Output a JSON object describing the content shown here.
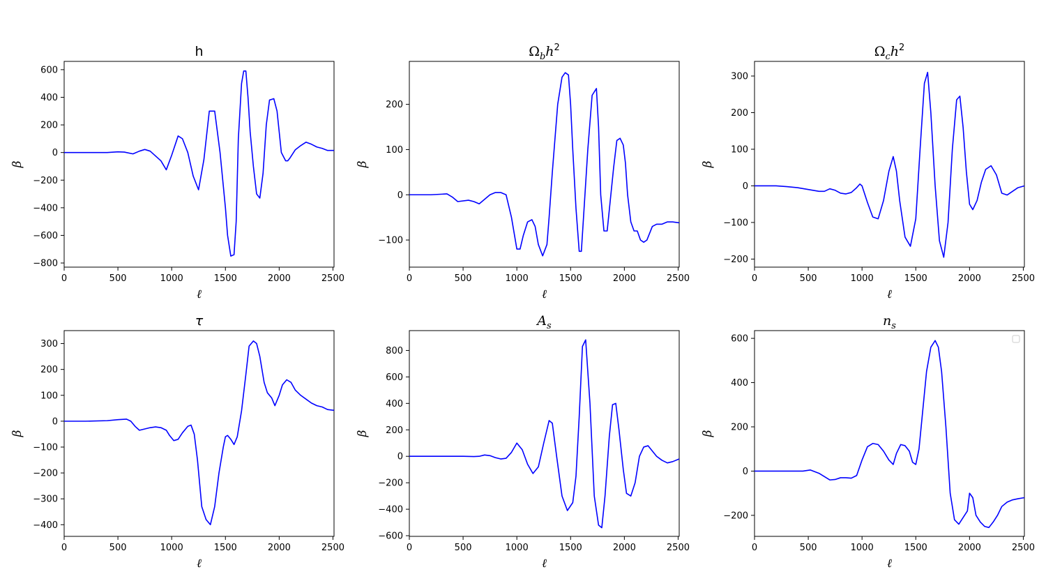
{
  "figure": {
    "colors": {
      "line": "#0000ff",
      "frame": "#000000",
      "background": "#ffffff"
    }
  },
  "chart_data": [
    {
      "type": "line",
      "title": "h",
      "xlabel": "ℓ",
      "ylabel": "β",
      "xlim": [
        0,
        2510
      ],
      "ylim": [
        -830,
        660
      ],
      "xticks": [
        0,
        500,
        1000,
        1500,
        2000,
        2500
      ],
      "yticks": [
        -800,
        -600,
        -400,
        -200,
        0,
        200,
        400,
        600
      ],
      "grid": false,
      "legend": false,
      "series": [
        {
          "color": "#0000ff",
          "x": [
            0,
            200,
            400,
            500,
            560,
            640,
            700,
            750,
            800,
            900,
            950,
            1000,
            1060,
            1100,
            1150,
            1200,
            1250,
            1300,
            1350,
            1400,
            1450,
            1500,
            1520,
            1550,
            1580,
            1600,
            1620,
            1650,
            1670,
            1690,
            1710,
            1730,
            1760,
            1790,
            1820,
            1850,
            1880,
            1910,
            1950,
            1980,
            2000,
            2020,
            2040,
            2060,
            2080,
            2100,
            2150,
            2200,
            2250,
            2300,
            2350,
            2400,
            2450,
            2510
          ],
          "y": [
            0,
            0,
            0,
            5,
            3,
            -10,
            10,
            22,
            10,
            -60,
            -125,
            -20,
            120,
            100,
            0,
            -170,
            -270,
            -50,
            300,
            300,
            0,
            -400,
            -600,
            -750,
            -740,
            -500,
            100,
            500,
            590,
            590,
            400,
            150,
            -100,
            -300,
            -330,
            -150,
            200,
            380,
            390,
            300,
            150,
            0,
            -30,
            -60,
            -60,
            -40,
            20,
            50,
            75,
            60,
            40,
            30,
            15,
            15
          ]
        }
      ]
    },
    {
      "type": "line",
      "title": "Ω_b h²",
      "title_parts": {
        "main": "Ω",
        "sub": "b",
        "mid": "h",
        "sup": "2"
      },
      "xlabel": "ℓ",
      "ylabel": "β",
      "xlim": [
        0,
        2510
      ],
      "ylim": [
        -160,
        295
      ],
      "xticks": [
        0,
        500,
        1000,
        1500,
        2000,
        2500
      ],
      "yticks": [
        -100,
        0,
        100,
        200
      ],
      "grid": false,
      "legend": false,
      "series": [
        {
          "color": "#0000ff",
          "x": [
            0,
            200,
            350,
            400,
            450,
            550,
            600,
            650,
            700,
            750,
            800,
            850,
            900,
            950,
            1000,
            1030,
            1060,
            1100,
            1140,
            1170,
            1200,
            1240,
            1280,
            1300,
            1330,
            1380,
            1420,
            1450,
            1480,
            1500,
            1520,
            1550,
            1580,
            1600,
            1620,
            1660,
            1700,
            1740,
            1760,
            1780,
            1810,
            1840,
            1870,
            1900,
            1930,
            1960,
            1990,
            2010,
            2030,
            2060,
            2090,
            2120,
            2150,
            2180,
            2210,
            2260,
            2300,
            2350,
            2400,
            2450,
            2510
          ],
          "y": [
            0,
            0,
            2,
            -5,
            -15,
            -12,
            -15,
            -20,
            -10,
            0,
            5,
            5,
            0,
            -50,
            -120,
            -120,
            -90,
            -60,
            -55,
            -70,
            -110,
            -135,
            -110,
            -50,
            50,
            200,
            260,
            270,
            265,
            200,
            100,
            -30,
            -125,
            -125,
            -50,
            100,
            220,
            235,
            150,
            0,
            -80,
            -80,
            -10,
            60,
            120,
            125,
            110,
            70,
            0,
            -60,
            -80,
            -80,
            -100,
            -105,
            -100,
            -70,
            -65,
            -65,
            -60,
            -60,
            -62
          ]
        }
      ]
    },
    {
      "type": "line",
      "title": "Ω_c h²",
      "title_parts": {
        "main": "Ω",
        "sub": "c",
        "mid": "h",
        "sup": "2"
      },
      "xlabel": "ℓ",
      "ylabel": "β",
      "xlim": [
        0,
        2510
      ],
      "ylim": [
        -222,
        340
      ],
      "xticks": [
        0,
        500,
        1000,
        1500,
        2000,
        2500
      ],
      "yticks": [
        -200,
        -100,
        0,
        100,
        200,
        300
      ],
      "grid": false,
      "legend": false,
      "series": [
        {
          "color": "#0000ff",
          "x": [
            0,
            200,
            300,
            400,
            500,
            600,
            650,
            700,
            750,
            800,
            850,
            900,
            950,
            980,
            1000,
            1050,
            1100,
            1150,
            1200,
            1250,
            1290,
            1320,
            1350,
            1400,
            1450,
            1500,
            1540,
            1580,
            1610,
            1640,
            1680,
            1720,
            1760,
            1800,
            1840,
            1880,
            1910,
            1940,
            1970,
            2000,
            2030,
            2070,
            2110,
            2150,
            2200,
            2250,
            2300,
            2350,
            2400,
            2450,
            2510
          ],
          "y": [
            0,
            0,
            -2,
            -5,
            -10,
            -15,
            -15,
            -8,
            -12,
            -20,
            -22,
            -18,
            -5,
            5,
            0,
            -45,
            -85,
            -90,
            -40,
            40,
            80,
            40,
            -40,
            -140,
            -165,
            -90,
            100,
            280,
            310,
            200,
            0,
            -150,
            -195,
            -100,
            100,
            235,
            245,
            160,
            40,
            -50,
            -65,
            -40,
            10,
            45,
            55,
            30,
            -20,
            -25,
            -15,
            -5,
            0
          ]
        }
      ]
    },
    {
      "type": "line",
      "title": "τ",
      "xlabel": "ℓ",
      "ylabel": "β",
      "xlim": [
        0,
        2510
      ],
      "ylim": [
        -445,
        350
      ],
      "xticks": [
        0,
        500,
        1000,
        1500,
        2000,
        2500
      ],
      "yticks": [
        -400,
        -300,
        -200,
        -100,
        0,
        100,
        200,
        300
      ],
      "grid": false,
      "legend": false,
      "series": [
        {
          "color": "#0000ff",
          "x": [
            0,
            200,
            400,
            500,
            580,
            620,
            660,
            700,
            750,
            800,
            850,
            900,
            950,
            980,
            1020,
            1060,
            1100,
            1150,
            1180,
            1210,
            1240,
            1280,
            1320,
            1360,
            1400,
            1440,
            1480,
            1500,
            1520,
            1550,
            1580,
            1610,
            1650,
            1690,
            1720,
            1760,
            1790,
            1820,
            1860,
            1890,
            1930,
            1960,
            2000,
            2030,
            2070,
            2110,
            2150,
            2200,
            2250,
            2300,
            2350,
            2400,
            2450,
            2510
          ],
          "y": [
            0,
            0,
            2,
            6,
            8,
            0,
            -20,
            -35,
            -30,
            -25,
            -22,
            -25,
            -35,
            -55,
            -75,
            -70,
            -45,
            -20,
            -15,
            -50,
            -150,
            -330,
            -380,
            -400,
            -330,
            -200,
            -100,
            -60,
            -55,
            -70,
            -90,
            -60,
            40,
            180,
            290,
            310,
            300,
            250,
            150,
            110,
            90,
            60,
            100,
            140,
            160,
            150,
            120,
            100,
            85,
            70,
            60,
            55,
            45,
            42
          ]
        }
      ]
    },
    {
      "type": "line",
      "title": "A_s",
      "title_parts": {
        "main": "A",
        "sub": "s"
      },
      "xlabel": "ℓ",
      "ylabel": "β",
      "xlim": [
        0,
        2510
      ],
      "ylim": [
        -605,
        950
      ],
      "xticks": [
        0,
        500,
        1000,
        1500,
        2000,
        2500
      ],
      "yticks": [
        -600,
        -400,
        -200,
        0,
        200,
        400,
        600,
        800
      ],
      "grid": false,
      "legend": false,
      "series": [
        {
          "color": "#0000ff",
          "x": [
            0,
            300,
            500,
            600,
            650,
            700,
            750,
            800,
            850,
            900,
            950,
            1000,
            1050,
            1100,
            1150,
            1200,
            1250,
            1300,
            1330,
            1370,
            1420,
            1470,
            1520,
            1550,
            1580,
            1610,
            1640,
            1680,
            1720,
            1760,
            1790,
            1820,
            1860,
            1890,
            1920,
            1950,
            1990,
            2020,
            2060,
            2100,
            2140,
            2180,
            2220,
            2260,
            2300,
            2350,
            2400,
            2450,
            2510
          ],
          "y": [
            0,
            0,
            0,
            -2,
            0,
            10,
            5,
            -10,
            -20,
            -15,
            30,
            100,
            50,
            -60,
            -130,
            -80,
            100,
            270,
            250,
            0,
            -300,
            -410,
            -350,
            -150,
            300,
            830,
            880,
            400,
            -300,
            -520,
            -540,
            -300,
            150,
            390,
            400,
            200,
            -100,
            -280,
            -300,
            -200,
            0,
            70,
            80,
            40,
            0,
            -30,
            -50,
            -40,
            -20
          ]
        }
      ]
    },
    {
      "type": "line",
      "title": "n_s",
      "title_parts": {
        "main": "n",
        "sub": "s"
      },
      "xlabel": "ℓ",
      "ylabel": "β",
      "xlim": [
        0,
        2510
      ],
      "ylim": [
        -295,
        635
      ],
      "xticks": [
        0,
        500,
        1000,
        1500,
        2000,
        2500
      ],
      "yticks": [
        -200,
        0,
        200,
        400,
        600
      ],
      "grid": false,
      "legend": true,
      "legend_placement": "top-right",
      "series": [
        {
          "color": "#0000ff",
          "x": [
            0,
            300,
            450,
            520,
            600,
            650,
            700,
            750,
            800,
            850,
            900,
            950,
            1000,
            1050,
            1100,
            1150,
            1200,
            1250,
            1290,
            1320,
            1360,
            1400,
            1440,
            1470,
            1500,
            1530,
            1560,
            1600,
            1640,
            1680,
            1710,
            1740,
            1780,
            1820,
            1860,
            1900,
            1940,
            1980,
            2000,
            2030,
            2060,
            2100,
            2140,
            2180,
            2220,
            2260,
            2300,
            2350,
            2400,
            2450,
            2510
          ],
          "y": [
            0,
            0,
            0,
            5,
            -10,
            -25,
            -40,
            -38,
            -30,
            -30,
            -32,
            -20,
            50,
            110,
            125,
            120,
            90,
            50,
            30,
            80,
            120,
            115,
            90,
            40,
            30,
            100,
            250,
            450,
            560,
            590,
            560,
            450,
            200,
            -100,
            -220,
            -240,
            -210,
            -180,
            -100,
            -120,
            -200,
            -230,
            -250,
            -255,
            -230,
            -200,
            -160,
            -140,
            -130,
            -125,
            -120
          ]
        }
      ]
    }
  ]
}
